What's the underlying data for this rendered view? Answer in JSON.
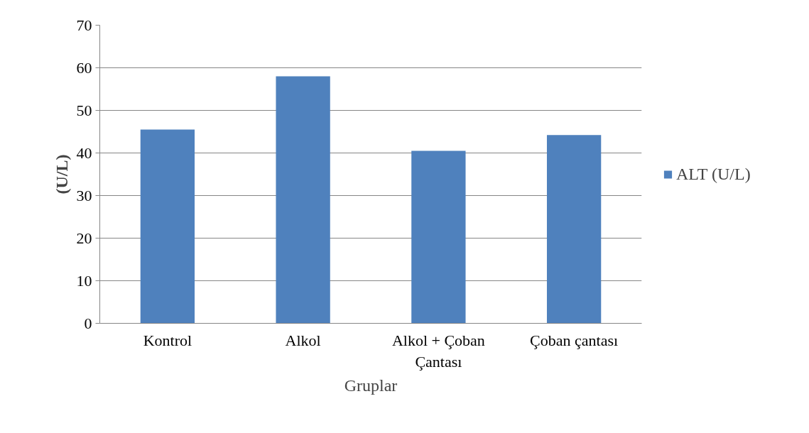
{
  "chart_data": {
    "type": "bar",
    "xlabel": "Gruplar",
    "ylabel": "(U/L)",
    "categories": [
      "Kontrol",
      "Alkol",
      "Alkol + Çoban Çantası",
      "Çoban çantası"
    ],
    "series": [
      {
        "name": "ALT (U/L)",
        "color": "#4f81bd",
        "values": [
          45.5,
          58,
          40.5,
          44.2
        ]
      }
    ],
    "ylim": [
      0,
      70
    ],
    "yticks": [
      0,
      10,
      20,
      30,
      40,
      50,
      60,
      70
    ],
    "grid": "y",
    "legend": "right"
  }
}
